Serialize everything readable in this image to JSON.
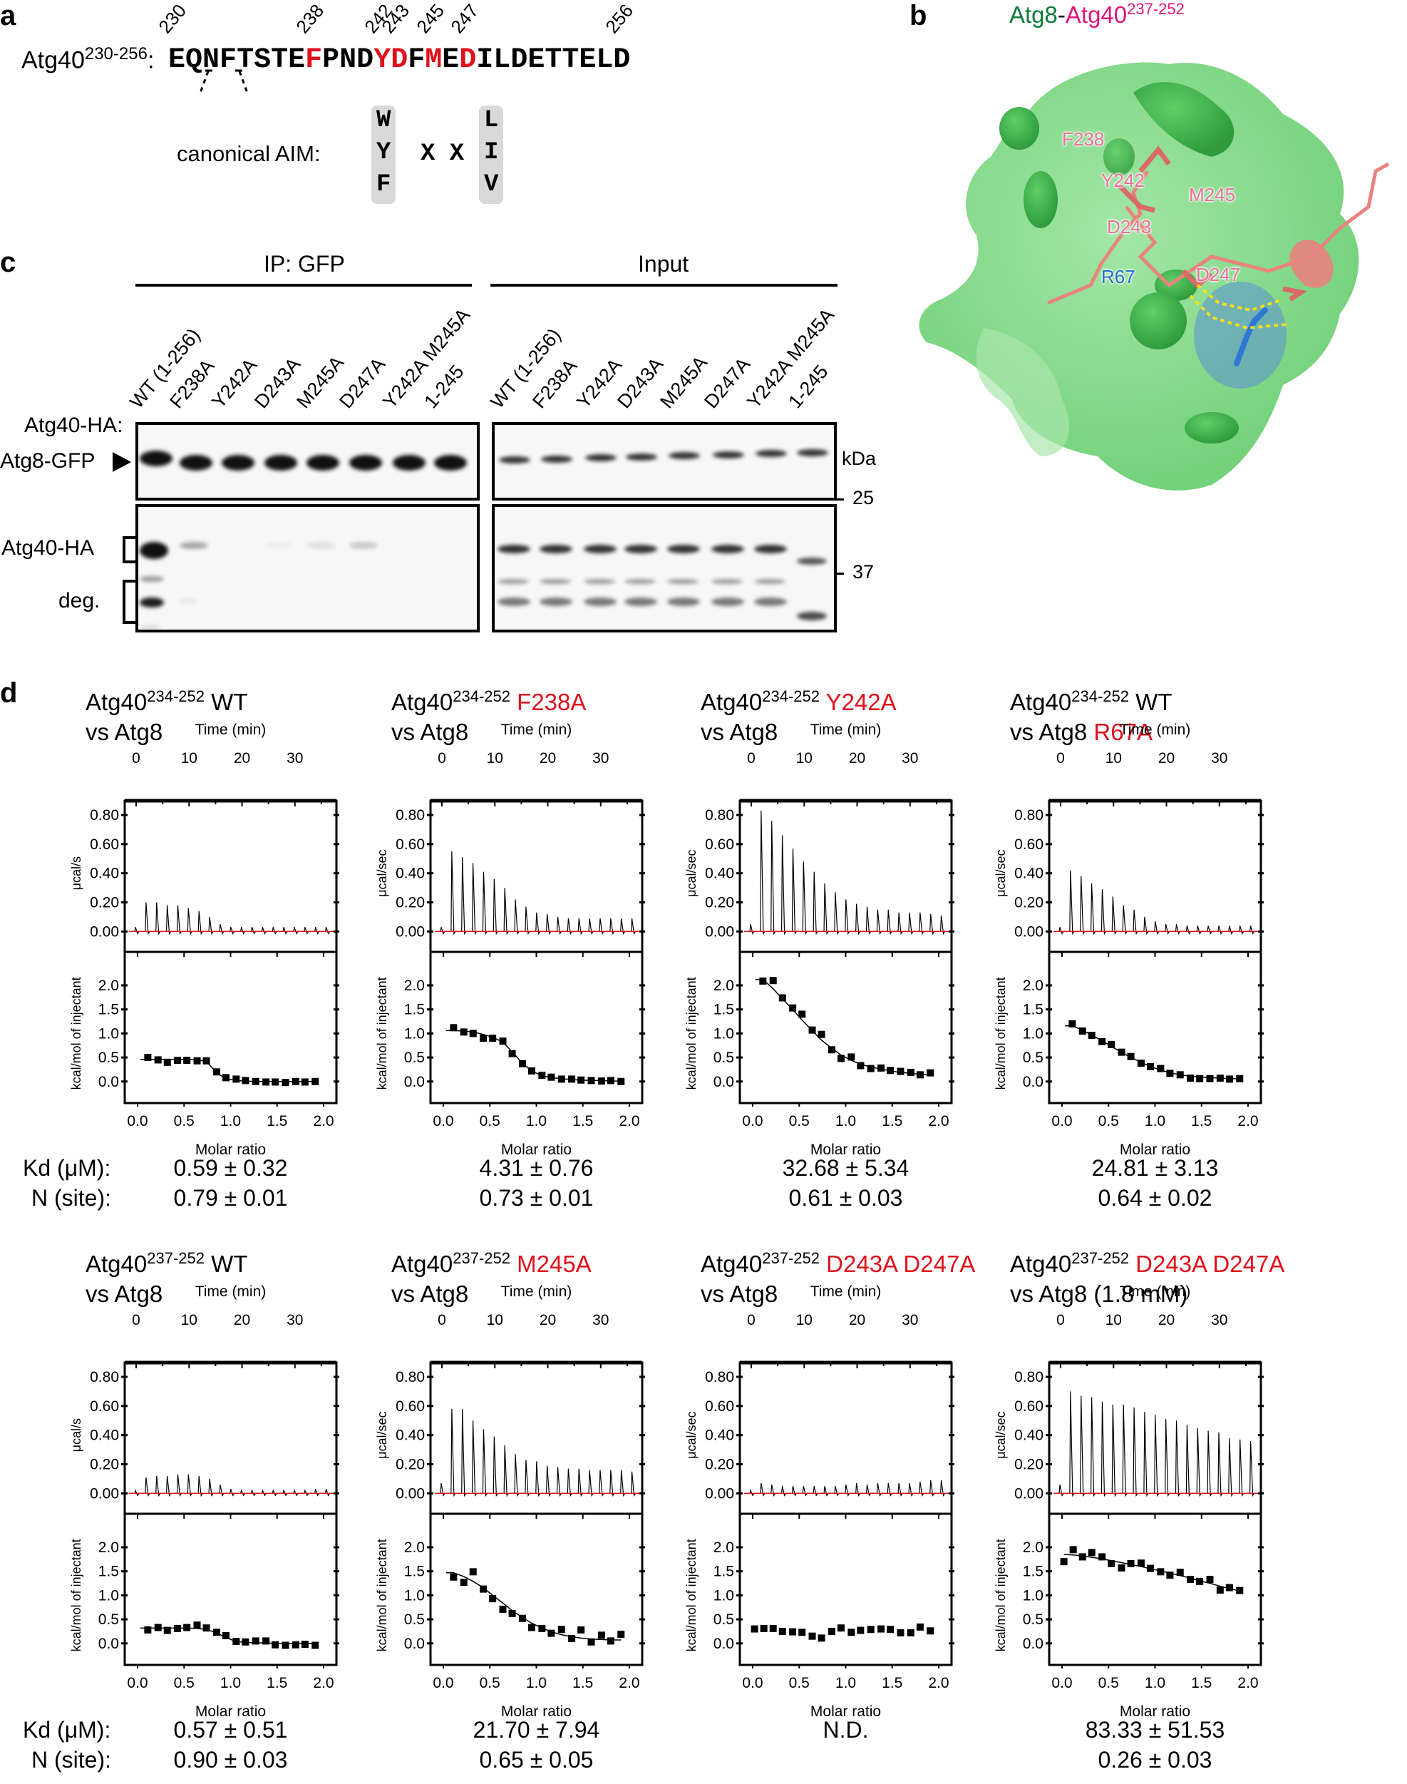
{
  "panel_a": {
    "label": "a",
    "seq_prefix": "Atg40",
    "seq_range": "230-256",
    "seq_colon": ":",
    "sequence": [
      {
        "aa": "E",
        "red": false
      },
      {
        "aa": "Q",
        "red": false
      },
      {
        "aa": "N",
        "red": false
      },
      {
        "aa": "F",
        "red": false
      },
      {
        "aa": "T",
        "red": false
      },
      {
        "aa": "S",
        "red": false
      },
      {
        "aa": "T",
        "red": false
      },
      {
        "aa": "E",
        "red": false
      },
      {
        "aa": "F",
        "red": true
      },
      {
        "aa": "P",
        "red": false
      },
      {
        "aa": "N",
        "red": false
      },
      {
        "aa": "D",
        "red": false
      },
      {
        "aa": "Y",
        "red": true
      },
      {
        "aa": "D",
        "red": true
      },
      {
        "aa": "F",
        "red": false
      },
      {
        "aa": "M",
        "red": true
      },
      {
        "aa": "E",
        "red": false
      },
      {
        "aa": "D",
        "red": true
      },
      {
        "aa": "I",
        "red": false
      },
      {
        "aa": "L",
        "red": false
      },
      {
        "aa": "D",
        "red": false
      },
      {
        "aa": "E",
        "red": false
      },
      {
        "aa": "T",
        "red": false
      },
      {
        "aa": "T",
        "red": false
      },
      {
        "aa": "E",
        "red": false
      },
      {
        "aa": "L",
        "red": false
      },
      {
        "aa": "D",
        "red": false
      }
    ],
    "position_labels": [
      {
        "text": "230",
        "index": 0
      },
      {
        "text": "238",
        "index": 8
      },
      {
        "text": "242",
        "index": 12
      },
      {
        "text": "243",
        "index": 13
      },
      {
        "text": "245",
        "index": 15
      },
      {
        "text": "247",
        "index": 17
      },
      {
        "text": "256",
        "index": 26
      }
    ],
    "aim_label": "canonical AIM:",
    "aim_col1": [
      "W",
      "Y",
      "F"
    ],
    "aim_middle": "X X",
    "aim_col2": [
      "L",
      "I",
      "V"
    ]
  },
  "panel_b": {
    "label": "b",
    "title_part1": "Atg8",
    "title_sep": "-",
    "title_part2": "Atg40",
    "title_sup": "237-252",
    "residues": [
      {
        "text": "F238",
        "color": "#e8729a"
      },
      {
        "text": "Y242",
        "color": "#e8729a"
      },
      {
        "text": "M245",
        "color": "#e8729a"
      },
      {
        "text": "D243",
        "color": "#e8729a"
      },
      {
        "text": "R67",
        "color": "#1f6fc4"
      },
      {
        "text": "D247",
        "color": "#e8729a"
      }
    ],
    "colors": {
      "surface": "#7fd885",
      "surface_dark": "#3fae4d",
      "peptide": "#e8837e",
      "arg": "#3a83d6",
      "hbond": "#f2e01c"
    }
  },
  "panel_c": {
    "label": "c",
    "group_ip": "IP: GFP",
    "group_input": "Input",
    "row_label": "Atg40-HA:",
    "lanes": [
      "WT (1-256)",
      "F238A",
      "Y242A",
      "D243A",
      "M245A",
      "D247A",
      "Y242A M245A",
      "1-245"
    ],
    "blot_labels": {
      "atg8_gfp": "Atg8-GFP",
      "atg40_ha": "Atg40-HA",
      "deg": "deg."
    },
    "mw_unit": "kDa",
    "mw_markers": [
      "25",
      "37"
    ]
  },
  "panel_d": {
    "label": "d",
    "kd_label": "Kd (μM):",
    "n_label": "N (site):",
    "time_axis_label": "Time (min)",
    "molar_axis_label": "Molar ratio",
    "kcal_axis_label": "kcal/mol of injectant",
    "time_ticks": [
      "0",
      "10",
      "20",
      "30"
    ],
    "power_ticks": [
      "0.80",
      "0.60",
      "0.40",
      "0.20",
      "0.00"
    ],
    "enthalpy_ticks": [
      "2.0",
      "1.5",
      "1.0",
      "0.5",
      "0.0"
    ],
    "molar_ticks": [
      "0.0",
      "0.5",
      "1.0",
      "1.5",
      "2.0"
    ],
    "experiments": [
      {
        "t_pre": "Atg40",
        "t_sup": "234-252",
        "t_mut": "WT",
        "t_mut_red": false,
        "line2": "vs Atg8",
        "line2_red": "",
        "ylabel": "μcal/s",
        "kd": "0.59 ± 0.32",
        "n": "0.79 ± 0.01"
      },
      {
        "t_pre": "Atg40",
        "t_sup": "234-252",
        "t_mut": "F238A",
        "t_mut_red": true,
        "line2": "vs Atg8",
        "line2_red": "",
        "ylabel": "μcal/sec",
        "kd": "4.31 ± 0.76",
        "n": "0.73 ± 0.01"
      },
      {
        "t_pre": "Atg40",
        "t_sup": "234-252",
        "t_mut": "Y242A",
        "t_mut_red": true,
        "line2": "vs Atg8",
        "line2_red": "",
        "ylabel": "μcal/sec",
        "kd": "32.68 ± 5.34",
        "n": "0.61 ± 0.03"
      },
      {
        "t_pre": "Atg40",
        "t_sup": "234-252",
        "t_mut": "WT",
        "t_mut_red": false,
        "line2": "vs Atg8",
        "line2_red": "R67A",
        "ylabel": "μcal/sec",
        "kd": "24.81 ± 3.13",
        "n": "0.64 ± 0.02"
      },
      {
        "t_pre": "Atg40",
        "t_sup": "237-252",
        "t_mut": "WT",
        "t_mut_red": false,
        "line2": "vs Atg8",
        "line2_red": "",
        "ylabel": "μcal/s",
        "kd": "0.57 ± 0.51",
        "n": "0.90 ± 0.03"
      },
      {
        "t_pre": "Atg40",
        "t_sup": "237-252",
        "t_mut": "M245A",
        "t_mut_red": true,
        "line2": "vs Atg8",
        "line2_red": "",
        "ylabel": "μcal/sec",
        "kd": "21.70 ± 7.94",
        "n": "0.65 ± 0.05"
      },
      {
        "t_pre": "Atg40",
        "t_sup": "237-252",
        "t_mut": "D243A D247A",
        "t_mut_red": true,
        "line2": "vs Atg8",
        "line2_red": "",
        "ylabel": "μcal/sec",
        "kd": "N.D.",
        "n": ""
      },
      {
        "t_pre": "Atg40",
        "t_sup": "237-252",
        "t_mut": "D243A D247A",
        "t_mut_red": true,
        "line2": "vs Atg8 (1.8 mM)",
        "line2_red": "",
        "ylabel": "μcal/sec",
        "kd": "83.33 ± 51.53",
        "n": "0.26 ± 0.03"
      }
    ]
  },
  "chart_data": [
    {
      "type": "scatter",
      "title": "Atg40 234-252 WT vs Atg8",
      "xlabel": "Molar ratio",
      "ylabel": "kcal/mol of injectant",
      "xlim": [
        -0.1,
        2.1
      ],
      "ylim": [
        -0.3,
        2.4
      ],
      "raw_peaks_ucal_s": [
        0.03,
        0.2,
        0.2,
        0.18,
        0.18,
        0.16,
        0.14,
        0.1,
        0.05,
        0.03,
        0.03,
        0.03,
        0.03,
        0.03,
        0.03,
        0.03,
        0.03,
        0.03,
        0.03
      ],
      "x": [
        0.11,
        0.22,
        0.32,
        0.43,
        0.53,
        0.64,
        0.74,
        0.85,
        0.95,
        1.06,
        1.16,
        1.27,
        1.38,
        1.48,
        1.59,
        1.7,
        1.8,
        1.91
      ],
      "y": [
        0.5,
        0.45,
        0.4,
        0.44,
        0.44,
        0.43,
        0.43,
        0.2,
        0.08,
        0.05,
        0.02,
        0.0,
        -0.01,
        -0.01,
        -0.02,
        0.0,
        -0.01,
        0.0
      ],
      "fit_y": [
        0.46,
        0.46,
        0.46,
        0.46,
        0.46,
        0.45,
        0.42,
        0.18,
        0.06,
        0.02,
        0.01,
        0.0,
        0.0,
        0.0,
        0.0,
        0.0,
        0.0,
        0.0
      ],
      "Kd_uM": "0.59 ± 0.32",
      "N": "0.79 ± 0.01"
    },
    {
      "type": "scatter",
      "title": "Atg40 234-252 F238A vs Atg8",
      "xlabel": "Molar ratio",
      "ylabel": "kcal/mol of injectant",
      "xlim": [
        -0.1,
        2.1
      ],
      "ylim": [
        -0.3,
        2.4
      ],
      "raw_peaks_ucal_s": [
        0.03,
        0.55,
        0.51,
        0.47,
        0.41,
        0.36,
        0.3,
        0.22,
        0.17,
        0.13,
        0.12,
        0.1,
        0.09,
        0.09,
        0.09,
        0.09,
        0.09,
        0.09,
        0.09
      ],
      "x": [
        0.11,
        0.22,
        0.32,
        0.43,
        0.53,
        0.64,
        0.74,
        0.85,
        0.95,
        1.06,
        1.16,
        1.27,
        1.38,
        1.48,
        1.59,
        1.7,
        1.8,
        1.91
      ],
      "y": [
        1.12,
        1.03,
        1.0,
        0.9,
        0.9,
        0.84,
        0.58,
        0.37,
        0.22,
        0.13,
        0.09,
        0.05,
        0.05,
        0.03,
        0.02,
        0.01,
        0.02,
        0.0
      ],
      "fit_y": [
        1.06,
        1.05,
        1.03,
        0.98,
        0.92,
        0.82,
        0.62,
        0.38,
        0.22,
        0.12,
        0.08,
        0.06,
        0.04,
        0.03,
        0.02,
        0.02,
        0.01,
        0.01
      ],
      "Kd_uM": "4.31 ± 0.76",
      "N": "0.73 ± 0.01"
    },
    {
      "type": "scatter",
      "title": "Atg40 234-252 Y242A vs Atg8",
      "xlabel": "Molar ratio",
      "ylabel": "kcal/mol of injectant",
      "xlim": [
        -0.1,
        2.1
      ],
      "ylim": [
        -0.3,
        2.4
      ],
      "raw_peaks_ucal_s": [
        0.05,
        0.83,
        0.76,
        0.66,
        0.57,
        0.48,
        0.41,
        0.33,
        0.27,
        0.22,
        0.19,
        0.17,
        0.15,
        0.15,
        0.13,
        0.13,
        0.13,
        0.12,
        0.11
      ],
      "x": [
        0.11,
        0.22,
        0.32,
        0.43,
        0.53,
        0.64,
        0.74,
        0.85,
        0.95,
        1.06,
        1.16,
        1.27,
        1.38,
        1.48,
        1.59,
        1.7,
        1.8,
        1.91
      ],
      "y": [
        2.09,
        2.1,
        1.74,
        1.53,
        1.4,
        1.07,
        0.98,
        0.66,
        0.48,
        0.51,
        0.33,
        0.27,
        0.28,
        0.23,
        0.21,
        0.19,
        0.14,
        0.18
      ],
      "fit_y": [
        2.12,
        1.93,
        1.72,
        1.5,
        1.28,
        1.06,
        0.86,
        0.69,
        0.55,
        0.44,
        0.36,
        0.3,
        0.26,
        0.22,
        0.19,
        0.17,
        0.15,
        0.13
      ],
      "Kd_uM": "32.68 ± 5.34",
      "N": "0.61 ± 0.03"
    },
    {
      "type": "scatter",
      "title": "Atg40 234-252 WT vs Atg8 R67A",
      "xlabel": "Molar ratio",
      "ylabel": "kcal/mol of injectant",
      "xlim": [
        -0.1,
        2.1
      ],
      "ylim": [
        -0.3,
        2.4
      ],
      "raw_peaks_ucal_s": [
        0.03,
        0.42,
        0.38,
        0.33,
        0.29,
        0.24,
        0.18,
        0.15,
        0.1,
        0.07,
        0.05,
        0.05,
        0.04,
        0.04,
        0.04,
        0.04,
        0.04,
        0.04,
        0.04
      ],
      "x": [
        0.11,
        0.22,
        0.32,
        0.43,
        0.53,
        0.64,
        0.74,
        0.85,
        0.95,
        1.06,
        1.16,
        1.27,
        1.38,
        1.48,
        1.59,
        1.7,
        1.8,
        1.91
      ],
      "y": [
        1.2,
        1.05,
        0.96,
        0.83,
        0.77,
        0.61,
        0.52,
        0.38,
        0.31,
        0.27,
        0.17,
        0.14,
        0.07,
        0.06,
        0.06,
        0.07,
        0.05,
        0.06
      ],
      "fit_y": [
        1.16,
        1.07,
        0.96,
        0.85,
        0.73,
        0.61,
        0.5,
        0.4,
        0.31,
        0.24,
        0.18,
        0.14,
        0.11,
        0.09,
        0.08,
        0.07,
        0.06,
        0.06
      ],
      "Kd_uM": "24.81 ± 3.13",
      "N": "0.64 ± 0.02"
    },
    {
      "type": "scatter",
      "title": "Atg40 237-252 WT vs Atg8",
      "xlabel": "Molar ratio",
      "ylabel": "kcal/mol of injectant",
      "xlim": [
        -0.1,
        2.1
      ],
      "ylim": [
        -0.3,
        2.4
      ],
      "raw_peaks_ucal_s": [
        0.02,
        0.11,
        0.12,
        0.12,
        0.13,
        0.13,
        0.12,
        0.1,
        0.06,
        0.03,
        0.02,
        0.02,
        0.02,
        0.02,
        0.02,
        0.02,
        0.02,
        0.03,
        0.03
      ],
      "x": [
        0.11,
        0.22,
        0.32,
        0.43,
        0.53,
        0.64,
        0.74,
        0.85,
        0.95,
        1.06,
        1.16,
        1.27,
        1.38,
        1.48,
        1.59,
        1.7,
        1.8,
        1.91
      ],
      "y": [
        0.28,
        0.33,
        0.27,
        0.31,
        0.33,
        0.38,
        0.32,
        0.23,
        0.16,
        0.04,
        0.03,
        0.05,
        0.05,
        -0.03,
        -0.04,
        -0.03,
        -0.02,
        -0.04
      ],
      "fit_y": [
        0.32,
        0.32,
        0.32,
        0.32,
        0.32,
        0.31,
        0.29,
        0.22,
        0.12,
        0.04,
        0.02,
        0.01,
        0.01,
        0.0,
        0.0,
        0.0,
        0.0,
        0.0
      ],
      "Kd_uM": "0.57 ± 0.51",
      "N": "0.90 ± 0.03"
    },
    {
      "type": "scatter",
      "title": "Atg40 237-252 M245A vs Atg8",
      "xlabel": "Molar ratio",
      "ylabel": "kcal/mol of injectant",
      "xlim": [
        -0.1,
        2.1
      ],
      "ylim": [
        -0.3,
        2.4
      ],
      "raw_peaks_ucal_s": [
        0.07,
        0.58,
        0.58,
        0.5,
        0.44,
        0.39,
        0.33,
        0.27,
        0.23,
        0.22,
        0.19,
        0.18,
        0.17,
        0.17,
        0.16,
        0.16,
        0.16,
        0.16,
        0.15
      ],
      "x": [
        0.11,
        0.22,
        0.32,
        0.43,
        0.53,
        0.64,
        0.74,
        0.85,
        0.95,
        1.06,
        1.16,
        1.27,
        1.38,
        1.48,
        1.59,
        1.7,
        1.8,
        1.91
      ],
      "y": [
        1.38,
        1.27,
        1.49,
        1.13,
        0.93,
        0.71,
        0.62,
        0.52,
        0.33,
        0.31,
        0.21,
        0.29,
        0.1,
        0.28,
        0.03,
        0.17,
        0.05,
        0.19
      ],
      "fit_y": [
        1.47,
        1.39,
        1.29,
        1.16,
        1.0,
        0.84,
        0.68,
        0.54,
        0.42,
        0.32,
        0.24,
        0.18,
        0.14,
        0.11,
        0.09,
        0.08,
        0.07,
        0.07
      ],
      "Kd_uM": "21.70 ± 7.94",
      "N": "0.65 ± 0.05"
    },
    {
      "type": "scatter",
      "title": "Atg40 237-252 D243A D247A vs Atg8",
      "xlabel": "Molar ratio",
      "ylabel": "kcal/mol of injectant",
      "xlim": [
        -0.1,
        2.1
      ],
      "ylim": [
        -0.3,
        2.4
      ],
      "raw_peaks_ucal_s": [
        0.02,
        0.07,
        0.06,
        0.05,
        0.05,
        0.05,
        0.05,
        0.05,
        0.05,
        0.06,
        0.07,
        0.06,
        0.07,
        0.07,
        0.07,
        0.07,
        0.08,
        0.09,
        0.09
      ],
      "x": [
        0.02,
        0.12,
        0.22,
        0.32,
        0.43,
        0.53,
        0.64,
        0.74,
        0.85,
        0.95,
        1.06,
        1.16,
        1.27,
        1.38,
        1.48,
        1.59,
        1.7,
        1.8,
        1.91
      ],
      "y": [
        0.3,
        0.31,
        0.31,
        0.25,
        0.24,
        0.23,
        0.15,
        0.11,
        0.25,
        0.32,
        0.23,
        0.27,
        0.29,
        0.3,
        0.29,
        0.22,
        0.22,
        0.34,
        0.26
      ],
      "fit_y": null,
      "Kd_uM": "N.D.",
      "N": ""
    },
    {
      "type": "scatter",
      "title": "Atg40 237-252 D243A D247A vs Atg8 (1.8 mM)",
      "xlabel": "Molar ratio",
      "ylabel": "kcal/mol of injectant",
      "xlim": [
        -0.1,
        2.1
      ],
      "ylim": [
        -0.3,
        2.4
      ],
      "raw_peaks_ucal_s": [
        0.06,
        0.7,
        0.67,
        0.66,
        0.63,
        0.61,
        0.61,
        0.59,
        0.56,
        0.54,
        0.51,
        0.5,
        0.47,
        0.45,
        0.43,
        0.42,
        0.38,
        0.37,
        0.36
      ],
      "x": [
        0.02,
        0.12,
        0.22,
        0.32,
        0.43,
        0.53,
        0.64,
        0.74,
        0.85,
        0.95,
        1.06,
        1.16,
        1.27,
        1.38,
        1.48,
        1.59,
        1.7,
        1.8,
        1.91
      ],
      "y": [
        1.7,
        1.95,
        1.8,
        1.89,
        1.8,
        1.66,
        1.57,
        1.66,
        1.67,
        1.56,
        1.49,
        1.42,
        1.48,
        1.33,
        1.29,
        1.33,
        1.11,
        1.16,
        1.1
      ],
      "fit_y": [
        1.85,
        1.84,
        1.82,
        1.79,
        1.76,
        1.72,
        1.68,
        1.64,
        1.6,
        1.55,
        1.51,
        1.46,
        1.41,
        1.36,
        1.3,
        1.25,
        1.19,
        1.14,
        1.09
      ],
      "Kd_uM": "83.33 ± 51.53",
      "N": "0.26 ± 0.03"
    }
  ]
}
